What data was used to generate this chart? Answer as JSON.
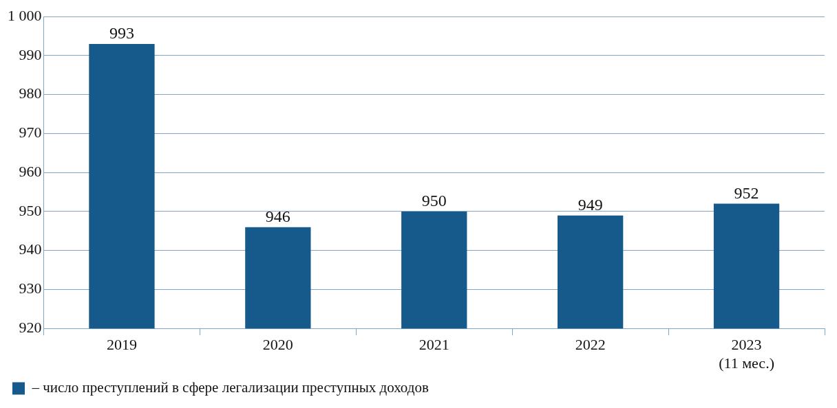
{
  "chart_data": {
    "type": "bar",
    "categories": [
      "2019",
      "2020",
      "2021",
      "2022",
      "2023\n(11 мес.)"
    ],
    "series": [
      {
        "name": "– число преступлений в сфере легализации преступных доходов",
        "color": "#155a8a",
        "values": [
          993,
          946,
          950,
          949,
          952
        ]
      }
    ],
    "ylim": [
      920,
      1000
    ],
    "yticks": [
      920,
      930,
      940,
      950,
      960,
      970,
      980,
      990,
      {
        "value": 1000,
        "label": "1 000"
      }
    ],
    "grid": "y",
    "legend": "bottom left",
    "data_labels": true
  }
}
